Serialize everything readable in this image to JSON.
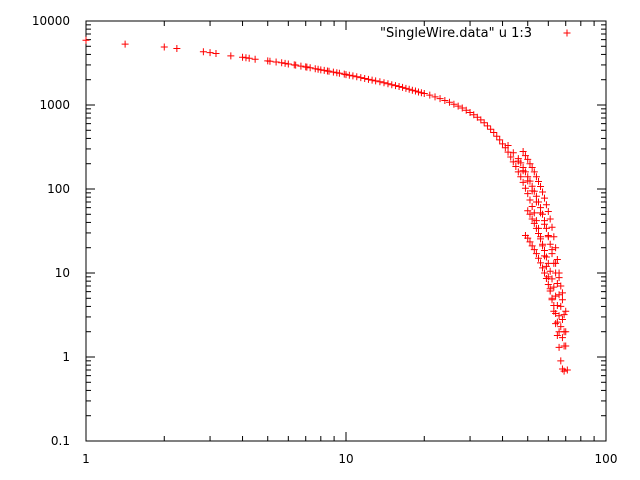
{
  "chart_data": {
    "type": "scatter",
    "title": "",
    "xlabel": "",
    "ylabel": "",
    "xscale": "log",
    "yscale": "log",
    "xlim": [
      1,
      100
    ],
    "ylim": [
      0.1,
      10000
    ],
    "x_ticks": [
      "1",
      "10",
      "100"
    ],
    "y_ticks": [
      "0.1",
      "1",
      "10",
      "100",
      "1000",
      "10000"
    ],
    "grid": false,
    "legend": {
      "position": "top-right",
      "entries": [
        "\"SingleWire.data\" u 1:3"
      ]
    },
    "marker": "+",
    "color": "#ff0000",
    "series": [
      {
        "name": "\"SingleWire.data\" u 1:3",
        "points": [
          [
            1,
            5900
          ],
          [
            1.414,
            5300
          ],
          [
            2,
            4900
          ],
          [
            2.236,
            4700
          ],
          [
            2.828,
            4300
          ],
          [
            3,
            4200
          ],
          [
            3.162,
            4100
          ],
          [
            3.606,
            3850
          ],
          [
            4,
            3700
          ],
          [
            4.123,
            3650
          ],
          [
            4.243,
            3600
          ],
          [
            4.472,
            3500
          ],
          [
            5,
            3350
          ],
          [
            5.099,
            3320
          ],
          [
            5.385,
            3250
          ],
          [
            5.657,
            3180
          ],
          [
            5.831,
            3130
          ],
          [
            6,
            3080
          ],
          [
            6.325,
            3000
          ],
          [
            6.403,
            2980
          ],
          [
            6.708,
            2900
          ],
          [
            7,
            2840
          ],
          [
            7.071,
            2820
          ],
          [
            7.28,
            2780
          ],
          [
            7.616,
            2700
          ],
          [
            7.81,
            2660
          ],
          [
            8,
            2620
          ],
          [
            8.246,
            2580
          ],
          [
            8.485,
            2540
          ],
          [
            8.602,
            2520
          ],
          [
            8.944,
            2460
          ],
          [
            9.22,
            2420
          ],
          [
            9.434,
            2390
          ],
          [
            9.849,
            2330
          ],
          [
            10,
            2300
          ],
          [
            10.3,
            2260
          ],
          [
            10.63,
            2220
          ],
          [
            11,
            2170
          ],
          [
            11.4,
            2120
          ],
          [
            11.8,
            2070
          ],
          [
            12.2,
            2020
          ],
          [
            12.6,
            1980
          ],
          [
            13,
            1940
          ],
          [
            13.5,
            1890
          ],
          [
            14,
            1840
          ],
          [
            14.5,
            1790
          ],
          [
            15,
            1740
          ],
          [
            15.5,
            1700
          ],
          [
            16,
            1660
          ],
          [
            16.5,
            1620
          ],
          [
            17,
            1580
          ],
          [
            17.5,
            1540
          ],
          [
            18,
            1500
          ],
          [
            18.5,
            1470
          ],
          [
            19,
            1430
          ],
          [
            19.5,
            1400
          ],
          [
            20,
            1370
          ],
          [
            21,
            1310
          ],
          [
            22,
            1250
          ],
          [
            23,
            1190
          ],
          [
            24,
            1130
          ],
          [
            25,
            1080
          ],
          [
            26,
            1020
          ],
          [
            27,
            970
          ],
          [
            28,
            920
          ],
          [
            29,
            865
          ],
          [
            30,
            815
          ],
          [
            31,
            765
          ],
          [
            32,
            715
          ],
          [
            33,
            665
          ],
          [
            34,
            615
          ],
          [
            35,
            565
          ],
          [
            36,
            515
          ],
          [
            37,
            470
          ],
          [
            38,
            425
          ],
          [
            39,
            385
          ],
          [
            40,
            345
          ],
          [
            41,
            310
          ],
          [
            42,
            275
          ],
          [
            43,
            240
          ],
          [
            44,
            210
          ],
          [
            45,
            185
          ],
          [
            46,
            160
          ],
          [
            47,
            140
          ],
          [
            48,
            120
          ],
          [
            49,
            102
          ],
          [
            50,
            88
          ],
          [
            51,
            74
          ],
          [
            52,
            62
          ],
          [
            53,
            52
          ],
          [
            54,
            42
          ],
          [
            55,
            34
          ],
          [
            56,
            27
          ],
          [
            57,
            21
          ],
          [
            58,
            16
          ],
          [
            59,
            12
          ],
          [
            60,
            9
          ],
          [
            61,
            6.5
          ],
          [
            62,
            4.8
          ],
          [
            63,
            3.5
          ],
          [
            64,
            2.5
          ],
          [
            65,
            1.8
          ],
          [
            66,
            1.3
          ],
          [
            67,
            0.9
          ],
          [
            68,
            0.72
          ],
          [
            69,
            0.68
          ],
          [
            46,
            230
          ],
          [
            47,
            205
          ],
          [
            48,
            180
          ],
          [
            49,
            160
          ],
          [
            50,
            140
          ],
          [
            51,
            124
          ],
          [
            52,
            108
          ],
          [
            53,
            94
          ],
          [
            54,
            82
          ],
          [
            55,
            70
          ],
          [
            56,
            60
          ],
          [
            57,
            50
          ],
          [
            58,
            42
          ],
          [
            59,
            34
          ],
          [
            60,
            28
          ],
          [
            61,
            22
          ],
          [
            62,
            17
          ],
          [
            63,
            13
          ],
          [
            64,
            10
          ],
          [
            65,
            7.5
          ],
          [
            66,
            5.5
          ],
          [
            67,
            4
          ],
          [
            68,
            2.8
          ],
          [
            69,
            2
          ],
          [
            48,
            280
          ],
          [
            49,
            250
          ],
          [
            50,
            225
          ],
          [
            51,
            200
          ],
          [
            52,
            180
          ],
          [
            53,
            160
          ],
          [
            54,
            140
          ],
          [
            55,
            123
          ],
          [
            56,
            107
          ],
          [
            57,
            92
          ],
          [
            58,
            78
          ],
          [
            59,
            65
          ],
          [
            60,
            54
          ],
          [
            61,
            44
          ],
          [
            62,
            35
          ],
          [
            63,
            27
          ],
          [
            64,
            20
          ],
          [
            65,
            14.5
          ],
          [
            66,
            10
          ],
          [
            67,
            7
          ],
          [
            68,
            4.8
          ],
          [
            69,
            3.2
          ],
          [
            70,
            2
          ],
          [
            50,
            55
          ],
          [
            51,
            50
          ],
          [
            52,
            44
          ],
          [
            53,
            39
          ],
          [
            54,
            34
          ],
          [
            55,
            29.5
          ],
          [
            56,
            25.5
          ],
          [
            57,
            22
          ],
          [
            58,
            18.5
          ],
          [
            59,
            15.5
          ],
          [
            60,
            13
          ],
          [
            61,
            10.5
          ],
          [
            62,
            8.5
          ],
          [
            63,
            6.8
          ],
          [
            64,
            5.3
          ],
          [
            65,
            4.1
          ],
          [
            66,
            3.1
          ],
          [
            67,
            2.3
          ],
          [
            68,
            1.7
          ],
          [
            69,
            1.35
          ],
          [
            49,
            28
          ],
          [
            50,
            26
          ],
          [
            51,
            23.5
          ],
          [
            52,
            21
          ],
          [
            53,
            19
          ],
          [
            54,
            17
          ],
          [
            55,
            15
          ],
          [
            56,
            13.2
          ],
          [
            57,
            11.5
          ],
          [
            58,
            10
          ],
          [
            59,
            8.6
          ],
          [
            60,
            7.3
          ],
          [
            61,
            6.1
          ],
          [
            62,
            5
          ],
          [
            63,
            4.1
          ],
          [
            64,
            3.3
          ],
          [
            65,
            2.6
          ],
          [
            66,
            2
          ],
          [
            42,
            330
          ],
          [
            44,
            270
          ],
          [
            46,
            215
          ],
          [
            48,
            165
          ],
          [
            50,
            125
          ],
          [
            52,
            95
          ],
          [
            54,
            70
          ],
          [
            56,
            52
          ],
          [
            58,
            38
          ],
          [
            60,
            27
          ],
          [
            62,
            19
          ],
          [
            64,
            13
          ],
          [
            66,
            8.8
          ],
          [
            68,
            5.8
          ],
          [
            70,
            3.5
          ],
          [
            70,
            1.35
          ],
          [
            71,
            0.7
          ]
        ]
      }
    ]
  }
}
